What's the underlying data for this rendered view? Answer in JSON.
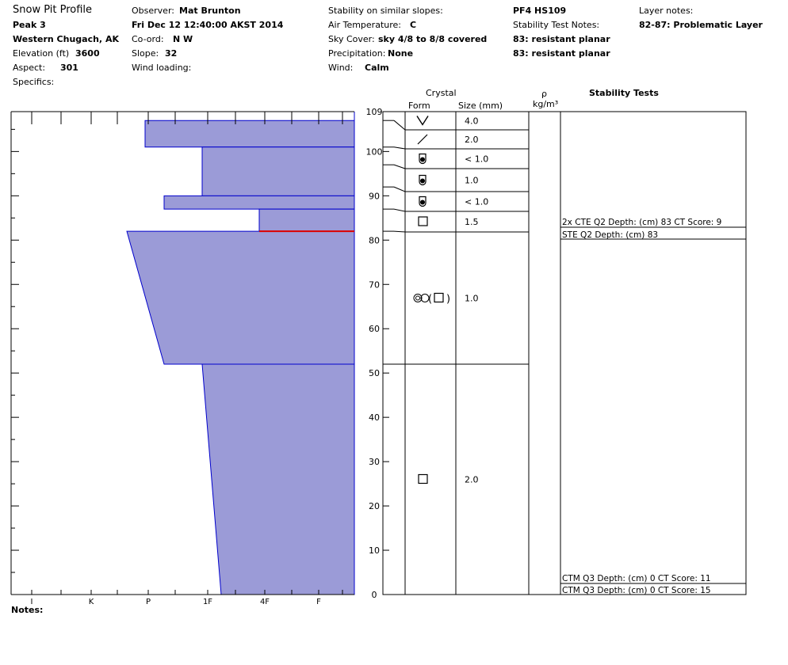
{
  "header": {
    "title": "Snow Pit Profile",
    "location": "Peak 3",
    "range": "Western Chugach, AK",
    "elevation_label": "Elevation (ft)",
    "elevation_value": "3600",
    "aspect_label": "Aspect:",
    "aspect_value": "301",
    "specifics_label": "Specifics:",
    "observer_label": "Observer:",
    "observer_value": "Mat Brunton",
    "datetime": "Fri Dec 12 12:40:00 AKST 2014",
    "coord_label": "Co-ord:",
    "coord_value": "N  W",
    "slope_label": "Slope:",
    "slope_value": "32",
    "wind_loading_label": "Wind loading:",
    "stability_similar_label": "Stability on similar slopes:",
    "air_temp_label": "Air Temperature:",
    "air_temp_value": "C",
    "sky_label": "Sky Cover:",
    "sky_value": "sky 4/8 to 8/8 covered",
    "precip_label": "Precipitation:",
    "precip_value": "None",
    "wind_label": "Wind:",
    "wind_value": "Calm",
    "pf_hs": "PF4 HS109",
    "stability_notes_label": "Stability Test Notes:",
    "stability_note_1": "83: resistant planar",
    "stability_note_2": "83: resistant planar",
    "layer_notes_label": "Layer notes:",
    "layer_note_1": "82-87: Problematic Layer",
    "notes_label": "Notes:"
  },
  "table_headers": {
    "crystal": "Crystal",
    "form": "Form",
    "size": "Size (mm)",
    "density_symbol": "ρ",
    "density_unit": "kg/m³",
    "stability_tests": "Stability Tests"
  },
  "chart_data": {
    "type": "area",
    "x_ticks": [
      "I",
      "K",
      "P",
      "1F",
      "4F",
      "F"
    ],
    "y_ticks": [
      0,
      10,
      20,
      30,
      40,
      50,
      60,
      70,
      80,
      90,
      100,
      109
    ],
    "ylim": [
      0,
      109
    ],
    "height_total_cm": 109,
    "critical_layer_depth_cm": 82,
    "hardness_scale_note": "hardness profile, F = softest (right), I = hardest (left)",
    "layers": [
      {
        "top": 109,
        "bottom": 107,
        "hardness_top": "F",
        "hardness_bottom": "F"
      },
      {
        "top": 107,
        "bottom": 101,
        "hardness_top": "P+",
        "hardness_bottom": "P+"
      },
      {
        "top": 101,
        "bottom": 90,
        "hardness_top": "1F",
        "hardness_bottom": "1F"
      },
      {
        "top": 90,
        "bottom": 87,
        "hardness_top": "P-",
        "hardness_bottom": "P-"
      },
      {
        "top": 87,
        "bottom": 82,
        "hardness_top": "4F",
        "hardness_bottom": "4F"
      },
      {
        "top": 82,
        "bottom": 52,
        "hardness_top": "K-",
        "hardness_bottom": "P-"
      },
      {
        "top": 52,
        "bottom": 0,
        "hardness_top": "1F",
        "hardness_bottom": "1F-"
      }
    ],
    "crystal_layers": [
      {
        "top": 109,
        "bottom": 107,
        "form": "DH",
        "size": "4.0"
      },
      {
        "top": 107,
        "bottom": 101,
        "form": "FC-line",
        "size": "2.0"
      },
      {
        "top": 101,
        "bottom": 97,
        "form": "MF",
        "size": "< 1.0"
      },
      {
        "top": 97,
        "bottom": 92,
        "form": "MF",
        "size": "1.0"
      },
      {
        "top": 92,
        "bottom": 87,
        "form": "MF",
        "size": "< 1.0"
      },
      {
        "top": 87,
        "bottom": 82,
        "form": "FC",
        "size": "1.5"
      },
      {
        "top": 82,
        "bottom": 52,
        "form": "RG-FC",
        "size": "1.0"
      },
      {
        "top": 52,
        "bottom": 0,
        "form": "FC",
        "size": "2.0"
      }
    ],
    "stability_tests": [
      {
        "depth": 83,
        "text": "2x CTE Q2 Depth: (cm) 83 CT Score: 9"
      },
      {
        "depth": 83,
        "text": "STE Q2 Depth: (cm) 83"
      },
      {
        "depth": 0,
        "text": "CTM Q3 Depth: (cm) 0 CT Score: 11"
      },
      {
        "depth": 0,
        "text": "CTM Q3 Depth: (cm) 0 CT Score: 15"
      }
    ],
    "colors": {
      "fill": "#9b9bd7",
      "outline": "#0000cc",
      "critical": "#dd0000"
    }
  }
}
